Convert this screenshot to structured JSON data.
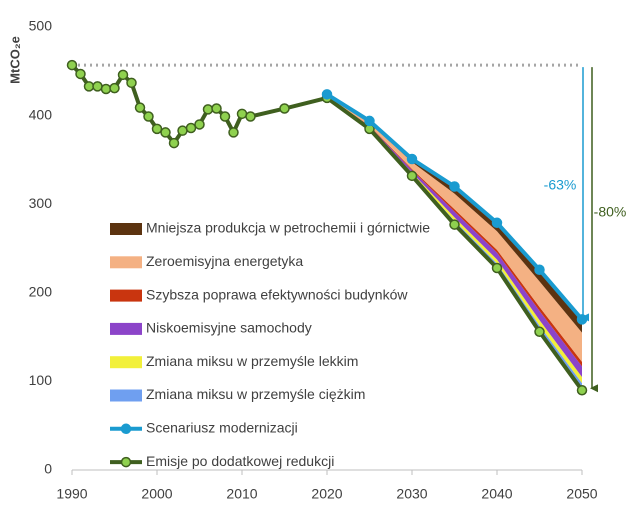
{
  "chart_data": {
    "type": "line",
    "y_label": "MtCO₂e",
    "xlim": [
      1990,
      2050
    ],
    "xticks": [
      1990,
      2000,
      2010,
      2020,
      2030,
      2040,
      2050
    ],
    "ylim": [
      0,
      500
    ],
    "yticks": [
      0,
      100,
      200,
      300,
      400,
      500
    ],
    "area_x": [
      2020,
      2025,
      2030,
      2035,
      2040,
      2045,
      2050
    ],
    "areas": [
      {
        "name": "Zmiana miksu w przemyśle ciężkim",
        "color": "#6f9ff0",
        "values": [
          0.4,
          0.9,
          1.9,
          4.3,
          5.1,
          7,
          8
        ]
      },
      {
        "name": "Zmiana miksu w przemyśle lekkim",
        "color": "#f2f03a",
        "values": [
          0.4,
          0.8,
          1.7,
          3.8,
          4.5,
          6.1,
          7
        ]
      },
      {
        "name": "Niskoemisyjne samochody",
        "color": "#8c44c9",
        "values": [
          0.6,
          1.4,
          2.9,
          6.5,
          7.7,
          10.5,
          12
        ]
      },
      {
        "name": "Szybsza poprawa efektywności budynków",
        "color": "#c9350f",
        "values": [
          0.2,
          0.6,
          1.2,
          2.7,
          3.2,
          4.4,
          5
        ]
      },
      {
        "name": "Zeroemisyjna energetyka",
        "color": "#f4b183",
        "values": [
          1.6,
          3.7,
          7.8,
          17.7,
          21,
          28.9,
          33
        ]
      },
      {
        "name": "Mniejsza produkcja w petrochemii i górnictwie",
        "color": "#5c3310",
        "values": [
          0.8,
          1.6,
          3.5,
          8,
          9.5,
          13.1,
          15
        ]
      }
    ],
    "series": [
      {
        "name": "Scenariusz modernizacji",
        "color": "#1a9bd0",
        "marker_color": "#1a9bd0",
        "x": [
          2020,
          2025,
          2030,
          2035,
          2040,
          2045,
          2050
        ],
        "values": [
          424,
          394,
          351,
          320,
          279,
          226,
          170
        ]
      },
      {
        "name": "Emisje po dodatkowej redukcji",
        "color": "#3f5f1f",
        "marker_color": "#8fd14f",
        "x": [
          1990,
          1991,
          1992,
          1993,
          1994,
          1995,
          1996,
          1997,
          1998,
          1999,
          2000,
          2001,
          2002,
          2003,
          2004,
          2005,
          2006,
          2007,
          2008,
          2009,
          2010,
          2011,
          2015,
          2020,
          2025,
          2030,
          2035,
          2040,
          2045,
          2050
        ],
        "values": [
          457,
          447,
          433,
          433,
          430,
          431,
          446,
          437,
          409,
          399,
          385,
          381,
          369,
          383,
          386,
          390,
          407,
          408,
          399,
          381,
          402,
          399,
          408,
          420,
          385,
          332,
          277,
          228,
          156,
          90
        ]
      }
    ],
    "annotations": [
      {
        "text": "-63%",
        "color": "#1a9bd0"
      },
      {
        "text": "-80%",
        "color": "#3f5f1f"
      }
    ]
  }
}
